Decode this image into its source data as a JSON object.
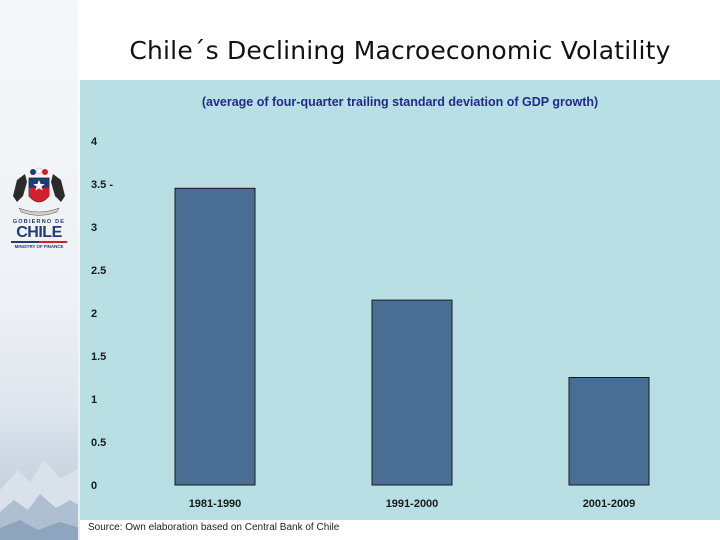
{
  "slide": {
    "title": "Chile´s Declining Macroeconomic Volatility",
    "source": "Source: Own elaboration based on Central Bank of Chile"
  },
  "logo": {
    "line1": "GOBIERNO DE",
    "brand": "CHILE",
    "line2": "MINISTRY OF FINANCE"
  },
  "colors": {
    "panel": "#b8dfe3",
    "bar": "#4a6e93",
    "subtitle": "#1f2b8a"
  },
  "chart_data": {
    "type": "bar",
    "title": "",
    "subtitle": "(average of four-quarter trailing standard deviation of GDP growth)",
    "categories": [
      "1981-1990",
      "1991-2000",
      "2001-2009"
    ],
    "values": [
      3.45,
      2.15,
      1.25
    ],
    "ylim": [
      0,
      4
    ],
    "yticks": [
      0,
      0.5,
      1,
      1.5,
      2,
      2.5,
      3,
      3.5,
      4
    ],
    "ytick_labels": [
      "0",
      "0.5",
      "1",
      "1.5",
      "2",
      "2.5",
      "3",
      "3.5 -",
      "4"
    ],
    "xlabel": "",
    "ylabel": "",
    "grid": false,
    "legend": "none"
  }
}
